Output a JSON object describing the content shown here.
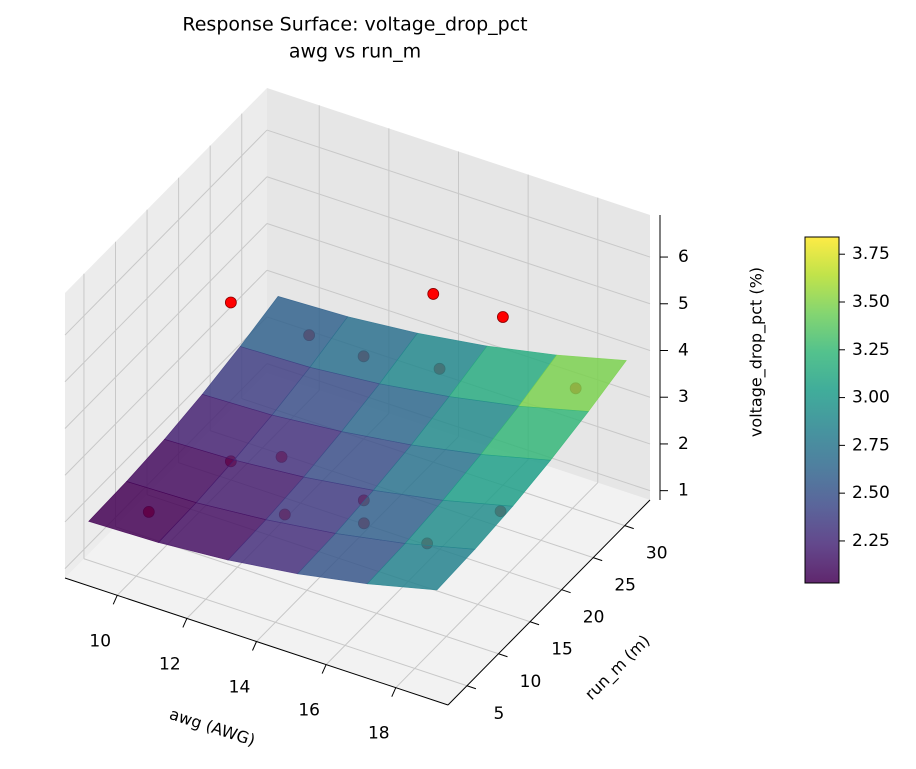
{
  "chart_data": {
    "type": "surface3d",
    "title": "Response Surface: voltage_drop_pct",
    "subtitle": "awg vs run_m",
    "xlabel": "awg (AWG)",
    "ylabel": "run_m (m)",
    "zlabel": "voltage_drop_pct (%)",
    "xlim": [
      8.5,
      19.5
    ],
    "ylim": [
      2,
      34
    ],
    "zlim": [
      0.8,
      6.9
    ],
    "xticks": [
      10,
      12,
      14,
      16,
      18
    ],
    "yticks": [
      5,
      10,
      15,
      20,
      25,
      30
    ],
    "zticks": [
      1,
      2,
      3,
      4,
      5,
      6
    ],
    "surface": {
      "colormap": "viridis",
      "alpha": 0.85,
      "x": [
        9,
        11,
        13,
        15,
        17,
        19
      ],
      "y": [
        3,
        9,
        15,
        21,
        27,
        33
      ],
      "z": [
        [
          2.0,
          2.03,
          2.11,
          2.25,
          2.45,
          2.7
        ],
        [
          2.04,
          2.07,
          2.16,
          2.3,
          2.5,
          2.76
        ],
        [
          2.16,
          2.2,
          2.29,
          2.44,
          2.64,
          2.9
        ],
        [
          2.36,
          2.4,
          2.5,
          2.65,
          2.86,
          3.12
        ],
        [
          2.64,
          2.68,
          2.78,
          2.94,
          3.15,
          3.42
        ],
        [
          3.0,
          3.05,
          3.15,
          3.31,
          3.53,
          3.8
        ]
      ]
    },
    "scatter": {
      "color": "#ff0000",
      "edgecolor": "#8b0000",
      "x": [
        10,
        14,
        16,
        18,
        10,
        10,
        12,
        10,
        12,
        14,
        18,
        13,
        14,
        15,
        16
      ],
      "y": [
        20,
        30,
        30,
        18.6,
        7,
        20,
        17,
        32.4,
        30,
        31,
        30.5,
        12,
        19,
        13.5,
        18
      ],
      "z": [
        4.6,
        4.4,
        4.4,
        2.3,
        1.9,
        1.2,
        2.2,
        2.2,
        2.57,
        2.66,
        3.3,
        1.9,
        1.49,
        2.0,
        1.2
      ]
    },
    "colorbar": {
      "lim": [
        2.03,
        3.84
      ],
      "ticks": [
        2.25,
        {
          "value": 2.5,
          "label": "2.50"
        },
        2.75,
        {
          "value": 3.0,
          "label": "3.00"
        },
        3.25,
        {
          "value": 3.5,
          "label": "3.50"
        },
        3.75
      ]
    }
  }
}
